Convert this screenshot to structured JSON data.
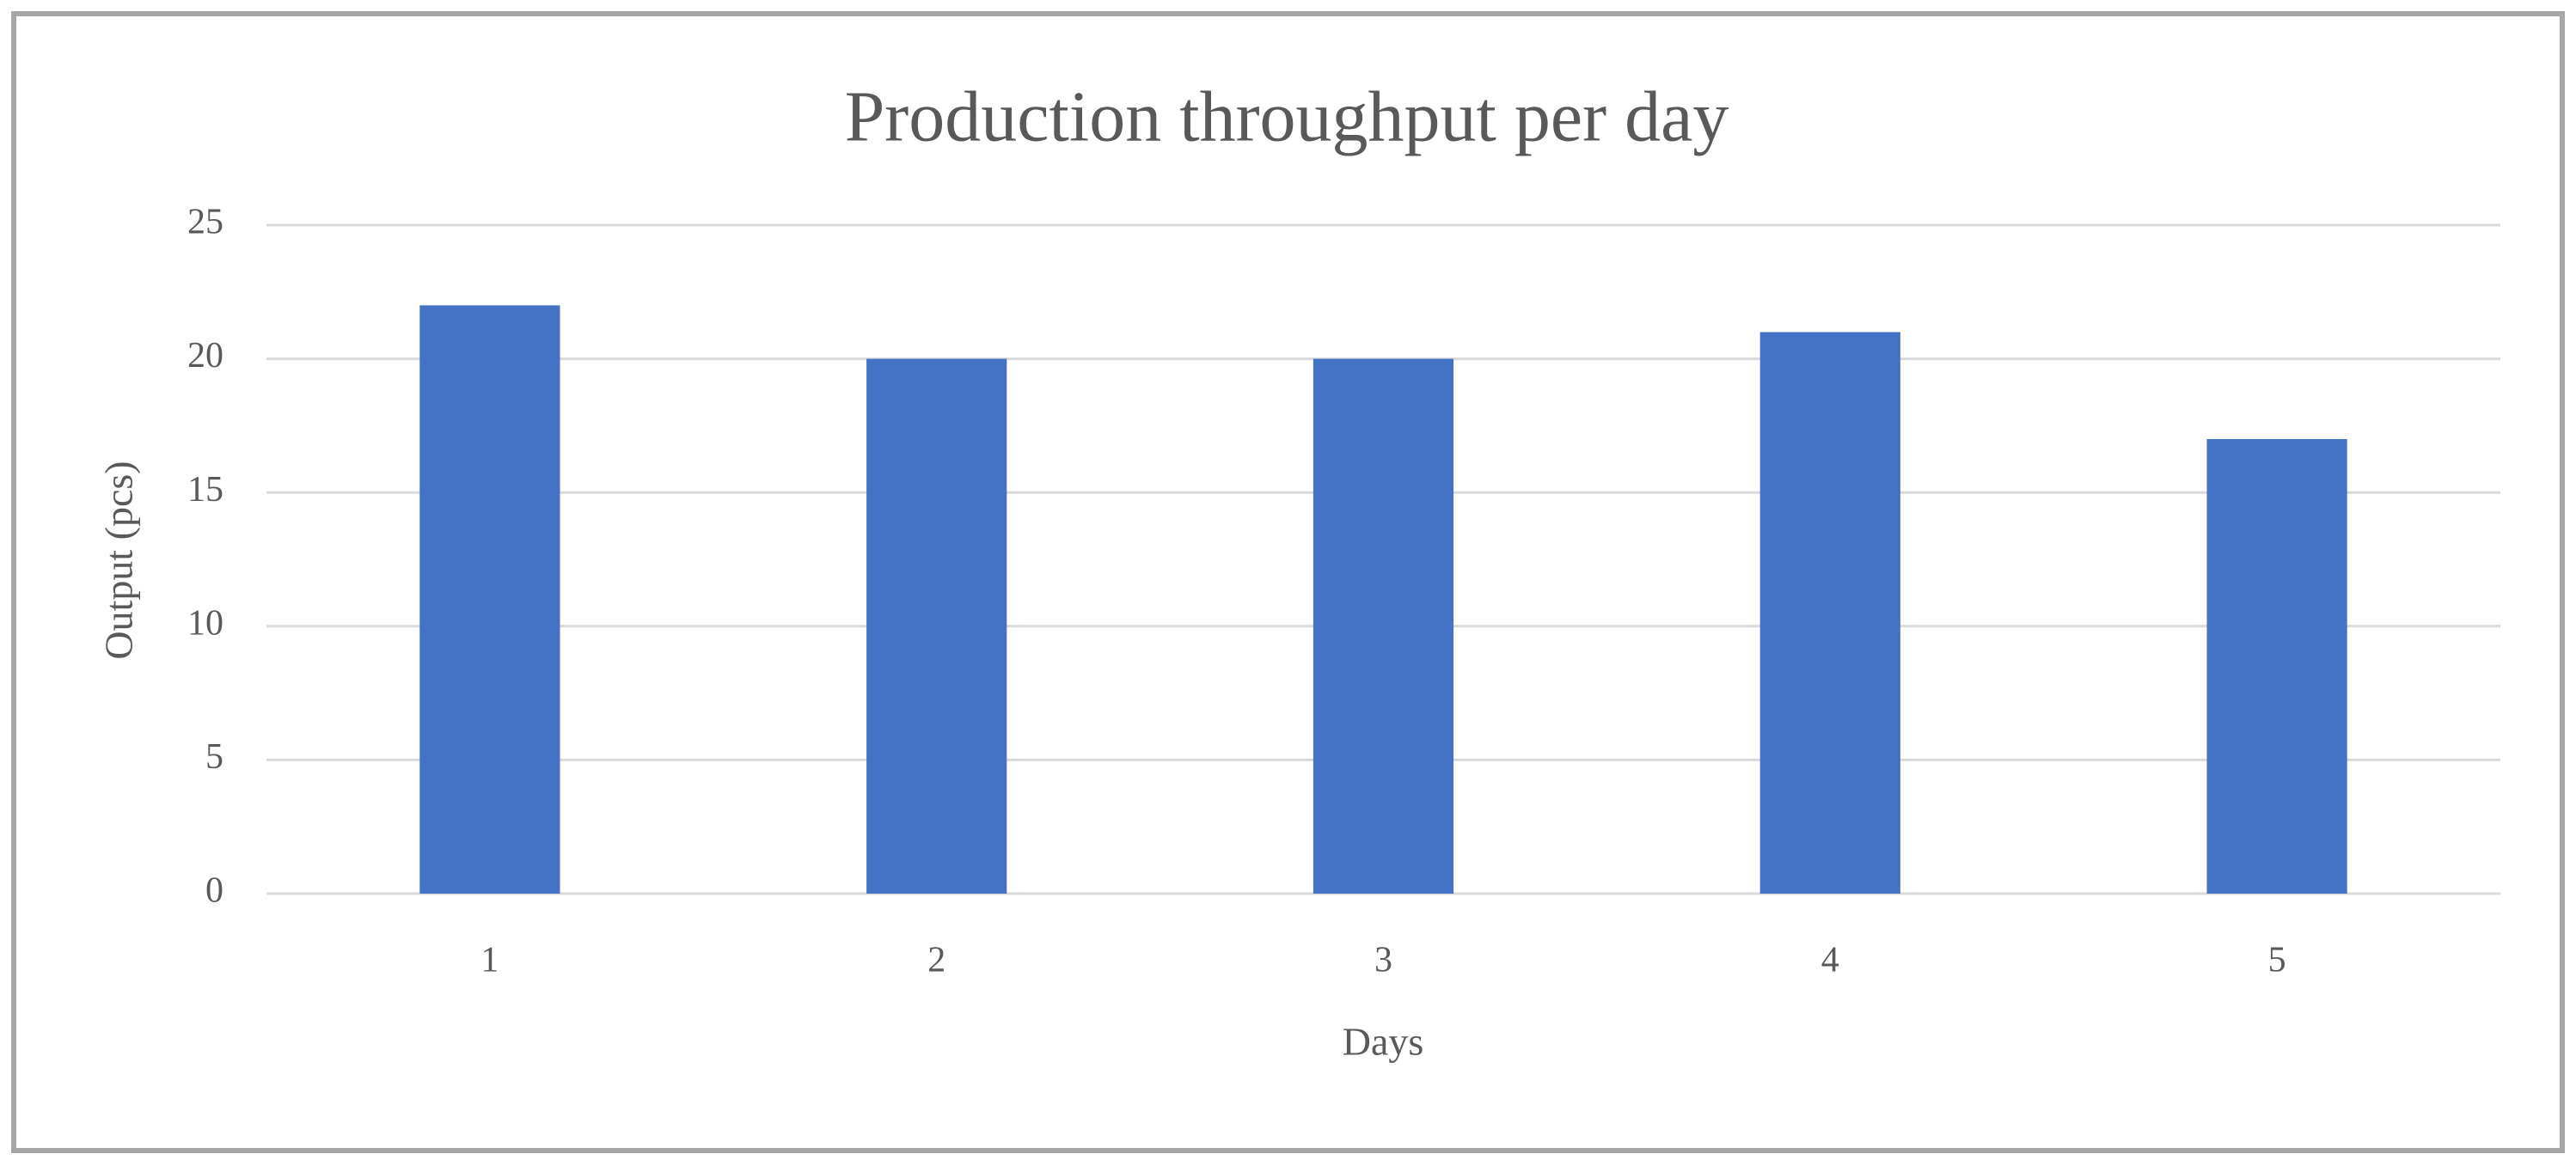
{
  "chart_data": {
    "type": "bar",
    "title": "Production throughput per day",
    "x_label": "Days",
    "y_label": "Output (pcs)",
    "categories": [
      "1",
      "2",
      "3",
      "4",
      "5"
    ],
    "values": [
      22,
      20,
      20,
      21,
      17
    ],
    "color": "#4472c4",
    "ylim": [
      0,
      25
    ],
    "yticks": [
      0,
      5,
      10,
      15,
      20,
      25
    ],
    "grid": true
  }
}
